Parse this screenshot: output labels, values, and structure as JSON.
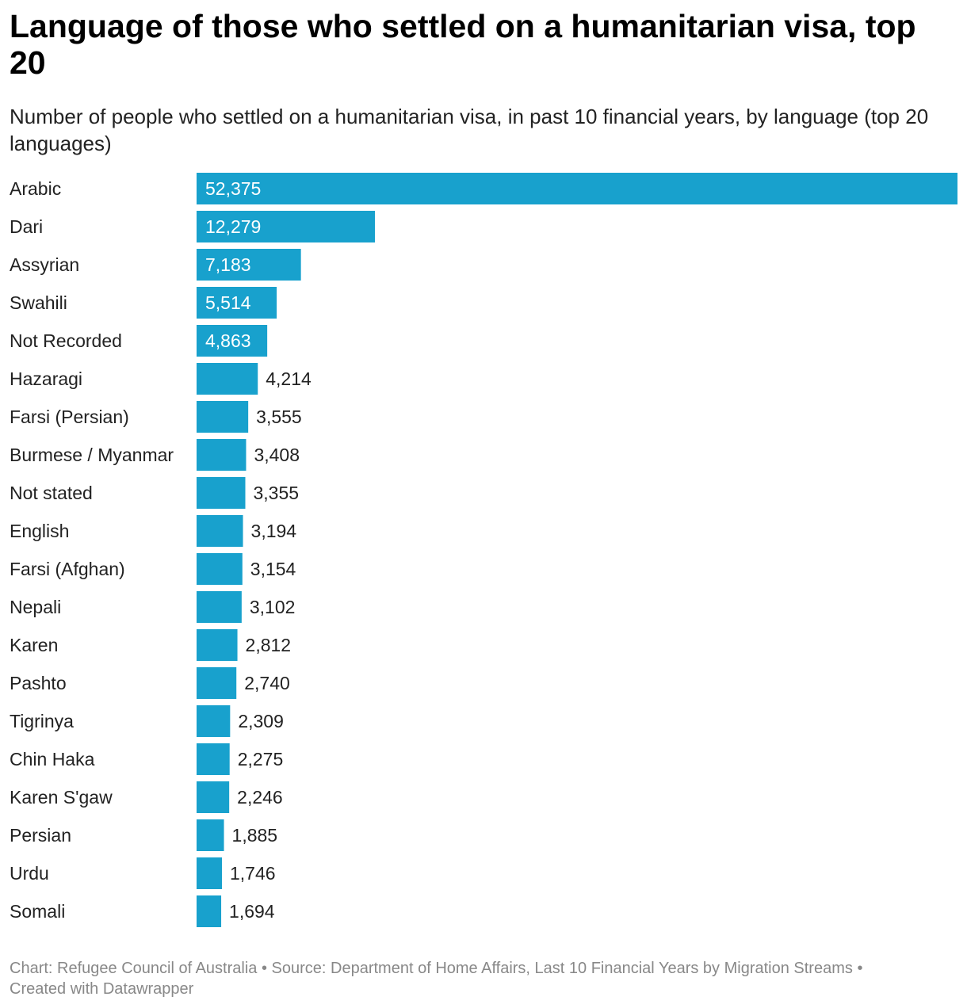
{
  "header": {
    "title": "Language of those who settled on a humanitarian visa, top 20",
    "subtitle": "Number of people who settled on a humanitarian visa, in past 10 financial years, by language (top 20 languages)"
  },
  "footer": {
    "chart_credit": "Chart: Refugee Council of Australia",
    "separator": "•",
    "source": "Source: Department of Home Affairs, Last 10 Financial Years by Migration Streams",
    "created_with": "Created with Datawrapper"
  },
  "colors": {
    "bar": "#18a1cd",
    "label_inside": "#ffffff",
    "label_outside": "#222222"
  },
  "chart_data": {
    "type": "bar",
    "orientation": "horizontal",
    "title": "Language of those who settled on a humanitarian visa, top 20",
    "xlabel": "",
    "ylabel": "",
    "xlim": [
      0,
      52375
    ],
    "categories": [
      "Arabic",
      "Dari",
      "Assyrian",
      "Swahili",
      "Not Recorded",
      "Hazaragi",
      "Farsi (Persian)",
      "Burmese / Myanmar",
      "Not stated",
      "English",
      "Farsi (Afghan)",
      "Nepali",
      "Karen",
      "Pashto",
      "Tigrinya",
      "Chin Haka",
      "Karen S'gaw",
      "Persian",
      "Urdu",
      "Somali"
    ],
    "values": [
      52375,
      12279,
      7183,
      5514,
      4863,
      4214,
      3555,
      3408,
      3355,
      3194,
      3154,
      3102,
      2812,
      2740,
      2309,
      2275,
      2246,
      1885,
      1746,
      1694
    ],
    "value_labels": [
      "52,375",
      "12,279",
      "7,183",
      "5,514",
      "4,863",
      "4,214",
      "3,555",
      "3,408",
      "3,355",
      "3,194",
      "3,154",
      "3,102",
      "2,812",
      "2,740",
      "2,309",
      "2,275",
      "2,246",
      "1,885",
      "1,746",
      "1,694"
    ],
    "grid": false,
    "legend": "none"
  }
}
